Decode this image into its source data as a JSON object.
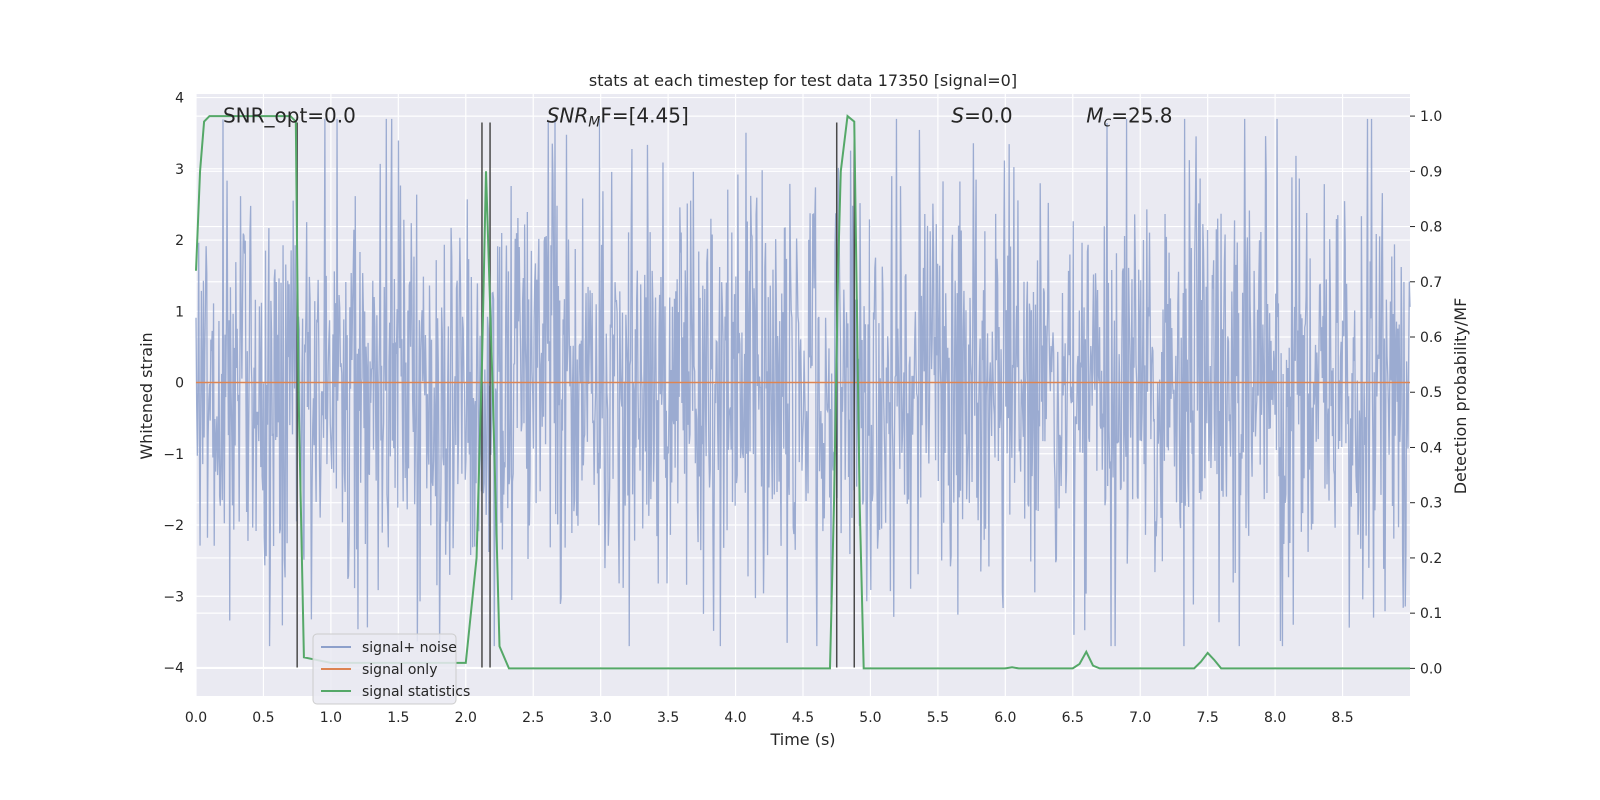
{
  "chart_data": {
    "type": "line",
    "title": "stats at each timestep for test data 17350 [signal=0]",
    "xlabel": "Time (s)",
    "ylabel": "Whitened strain",
    "ylabel_right": "Detection probability/MF",
    "xlim": [
      0.0,
      9.0
    ],
    "ylim": [
      -4.4,
      4.05
    ],
    "ylim_right": [
      -0.05,
      1.04
    ],
    "x_ticks": [
      "0.0",
      "0.5",
      "1.0",
      "1.5",
      "2.0",
      "2.5",
      "3.0",
      "3.5",
      "4.0",
      "4.5",
      "5.0",
      "5.5",
      "6.0",
      "6.5",
      "7.0",
      "7.5",
      "8.0",
      "8.5"
    ],
    "y_ticks": [
      "4",
      "3",
      "2",
      "1",
      "0",
      "−1",
      "−2",
      "−3",
      "−4"
    ],
    "y_ticks_right": [
      "1.0",
      "0.9",
      "0.8",
      "0.7",
      "0.6",
      "0.5",
      "0.4",
      "0.3",
      "0.2",
      "0.1",
      "0.0"
    ],
    "grid": true,
    "annotations": [
      {
        "text": "SNR_opt=0.0",
        "x": 0.2,
        "y": 3.75
      },
      {
        "text": "SNR",
        "sub": "M",
        "tail": "F=[4.45]",
        "italic": true,
        "x": 2.6,
        "y": 3.75
      },
      {
        "text": "S",
        "tail": "=0.0",
        "italic": true,
        "x": 5.6,
        "y": 3.75
      },
      {
        "text": "M",
        "sub": "c",
        "tail": "=25.8",
        "italic": true,
        "x": 6.6,
        "y": 3.75
      }
    ],
    "legend": {
      "position": "lower-left",
      "entries": [
        {
          "label": "signal+ noise",
          "color": "#8da0cb"
        },
        {
          "label": "signal only",
          "color": "#dd8452"
        },
        {
          "label": "signal statistics",
          "color": "#55a868"
        }
      ]
    },
    "series": [
      {
        "name": "signal+ noise",
        "color": "#8da0cb",
        "x_start": 0.0,
        "x_end": 9.0,
        "sample_count": 1800,
        "envelope_abs_max": 3.7,
        "typical_abs_range": [
          1.2,
          2.7
        ]
      },
      {
        "name": "signal only",
        "color": "#dd8452",
        "x": [
          0.0,
          9.0
        ],
        "y": [
          0.0,
          0.0
        ]
      },
      {
        "name": "signal statistics",
        "color": "#55a868",
        "axis": "right",
        "x": [
          0.0,
          0.03,
          0.06,
          0.1,
          0.2,
          0.4,
          0.6,
          0.7,
          0.74,
          0.76,
          0.8,
          1.0,
          1.5,
          2.0,
          2.08,
          2.12,
          2.15,
          2.2,
          2.25,
          2.32,
          2.6,
          3.0,
          4.0,
          4.5,
          4.7,
          4.73,
          4.76,
          4.78,
          4.83,
          4.88,
          4.92,
          4.95,
          5.5,
          6.0,
          6.05,
          6.1,
          6.5,
          6.55,
          6.6,
          6.65,
          6.7,
          7.0,
          7.4,
          7.45,
          7.5,
          7.55,
          7.6,
          8.0,
          8.5,
          9.0
        ],
        "y": [
          0.72,
          0.9,
          0.99,
          1.0,
          1.0,
          1.0,
          1.0,
          1.0,
          0.99,
          0.5,
          0.02,
          0.01,
          0.01,
          0.01,
          0.2,
          0.55,
          0.9,
          0.5,
          0.04,
          0.0,
          0.0,
          0.0,
          0.0,
          0.0,
          0.0,
          0.3,
          0.72,
          0.9,
          1.0,
          0.99,
          0.3,
          0.0,
          0.0,
          0.0,
          0.002,
          0.0,
          0.0,
          0.008,
          0.03,
          0.005,
          0.0,
          0.0,
          0.0,
          0.012,
          0.028,
          0.015,
          0.0,
          0.0,
          0.0,
          0.0
        ]
      }
    ],
    "vertical_markers": {
      "color": "#4a4a4a",
      "x": [
        0.75,
        2.12,
        2.18,
        4.75,
        4.88
      ],
      "y_range": [
        -4.0,
        3.65
      ]
    }
  }
}
